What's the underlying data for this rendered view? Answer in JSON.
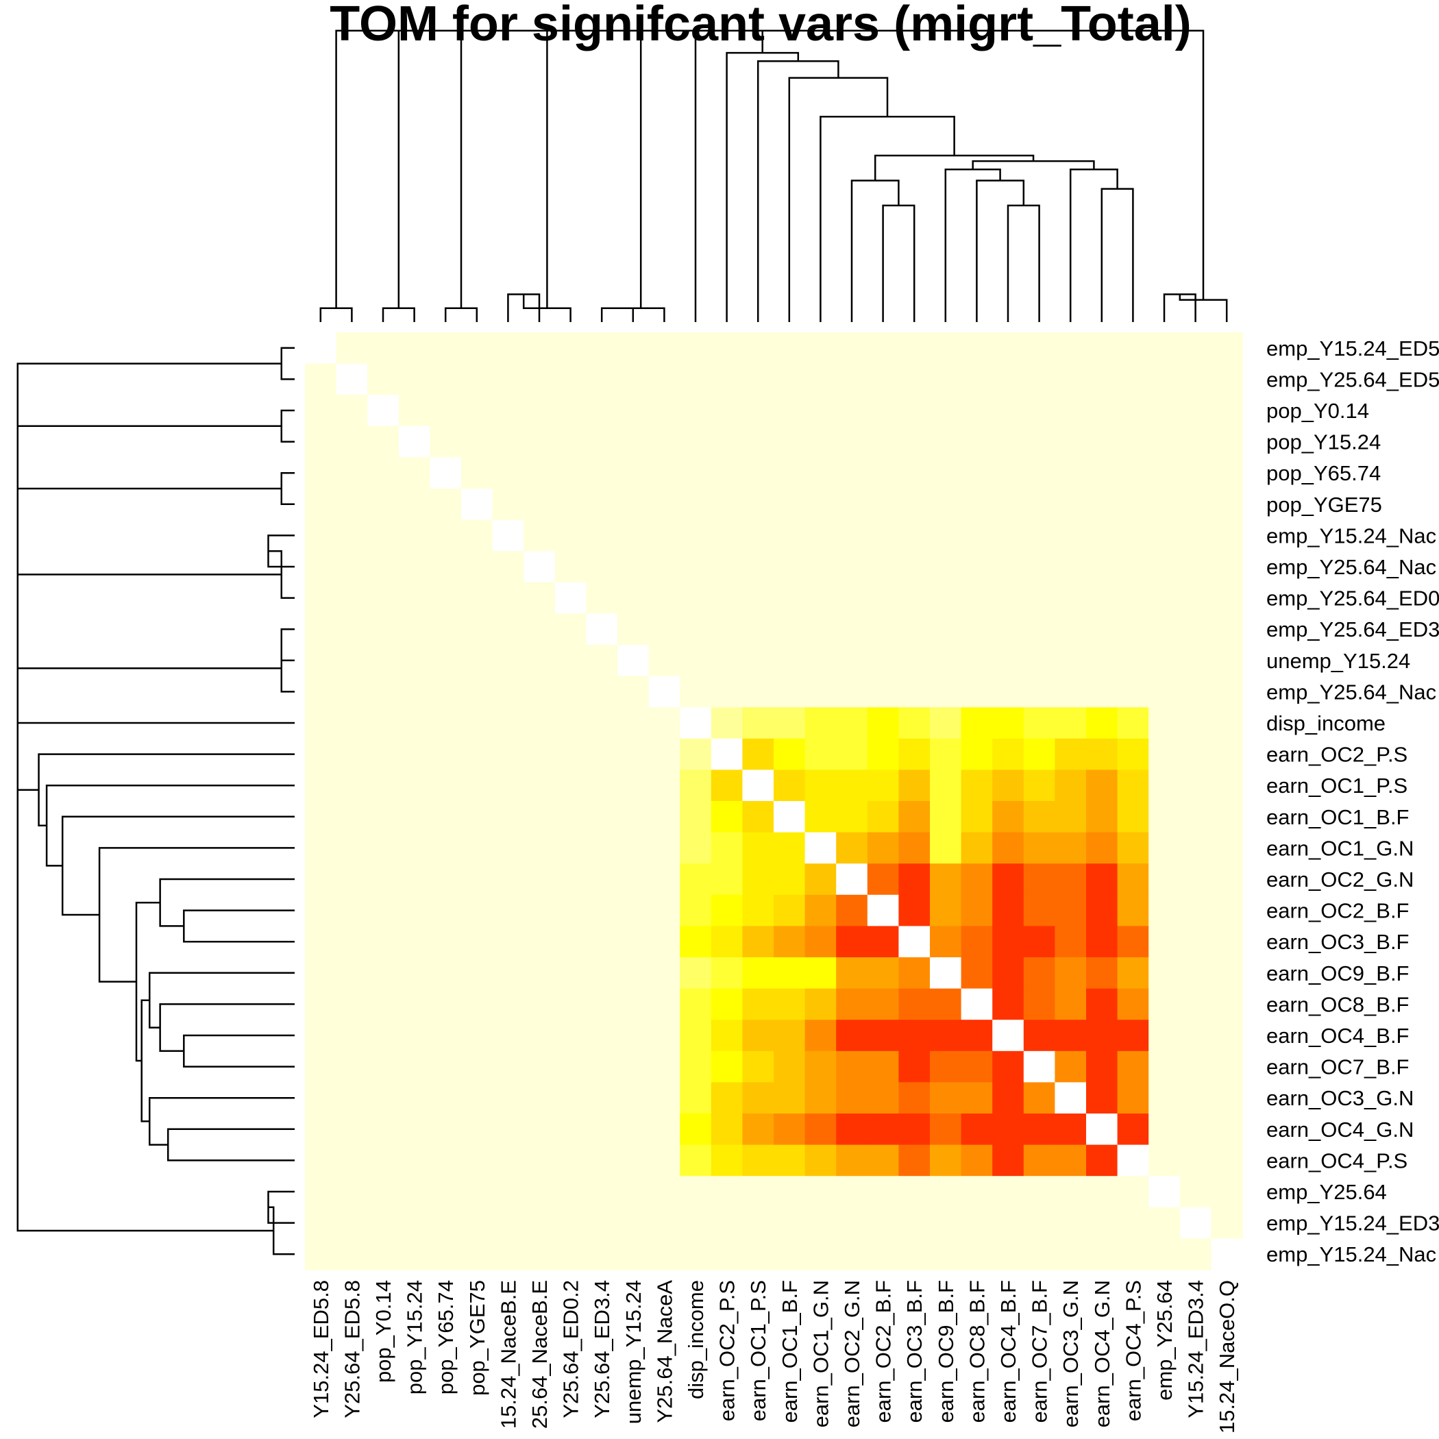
{
  "chart_data": {
    "type": "heatmap",
    "title": "TOM for signifcant vars (migrt_Total)",
    "row_labels": [
      "emp_Y15.24_ED5",
      "emp_Y25.64_ED5",
      "pop_Y0.14",
      "pop_Y15.24",
      "pop_Y65.74",
      "pop_YGE75",
      "emp_Y15.24_Nac",
      "emp_Y25.64_Nac",
      "emp_Y25.64_ED0",
      "emp_Y25.64_ED3",
      "unemp_Y15.24",
      "emp_Y25.64_Nac",
      "disp_income",
      "earn_OC2_P.S",
      "earn_OC1_P.S",
      "earn_OC1_B.F",
      "earn_OC1_G.N",
      "earn_OC2_G.N",
      "earn_OC2_B.F",
      "earn_OC3_B.F",
      "earn_OC9_B.F",
      "earn_OC8_B.F",
      "earn_OC4_B.F",
      "earn_OC7_B.F",
      "earn_OC3_G.N",
      "earn_OC4_G.N",
      "earn_OC4_P.S",
      "emp_Y25.64",
      "emp_Y15.24_ED3",
      "emp_Y15.24_Nac"
    ],
    "col_labels": [
      "Y15.24_ED5.8",
      "Y25.64_ED5.8",
      "pop_Y0.14",
      "pop_Y15.24",
      "pop_Y65.74",
      "pop_YGE75",
      "15.24_NaceB.E",
      "25.64_NaceB.E",
      "Y25.64_ED0.2",
      "Y25.64_ED3.4",
      "unemp_Y15.24",
      "Y25.64_NaceA",
      "disp_income",
      "earn_OC2_P.S",
      "earn_OC1_P.S",
      "earn_OC1_B.F",
      "earn_OC1_G.N",
      "earn_OC2_G.N",
      "earn_OC2_B.F",
      "earn_OC3_B.F",
      "earn_OC9_B.F",
      "earn_OC8_B.F",
      "earn_OC4_B.F",
      "earn_OC7_B.F",
      "earn_OC3_G.N",
      "earn_OC4_G.N",
      "earn_OC4_P.S",
      "emp_Y25.64",
      "Y15.24_ED3.4",
      "15.24_NaceO.Q"
    ],
    "cluster_labels": [
      "disp_income",
      "earn_OC2_P.S",
      "earn_OC1_P.S",
      "earn_OC1_B.F",
      "earn_OC1_G.N",
      "earn_OC2_G.N",
      "earn_OC2_B.F",
      "earn_OC3_B.F",
      "earn_OC9_B.F",
      "earn_OC8_B.F",
      "earn_OC4_B.F",
      "earn_OC7_B.F",
      "earn_OC3_G.N",
      "earn_OC4_G.N",
      "earn_OC4_P.S"
    ],
    "cluster_start": 12,
    "block_values": [
      [
        0,
        1,
        2,
        2,
        3,
        3,
        4,
        3,
        2,
        4,
        4,
        3,
        3,
        4,
        3
      ],
      [
        1,
        0,
        6,
        4,
        3,
        3,
        4,
        5,
        3,
        4,
        5,
        4,
        6,
        6,
        5
      ],
      [
        2,
        6,
        0,
        6,
        5,
        5,
        5,
        7,
        3,
        6,
        7,
        6,
        7,
        8,
        6
      ],
      [
        2,
        4,
        6,
        0,
        5,
        5,
        6,
        8,
        3,
        6,
        8,
        7,
        7,
        8,
        6
      ],
      [
        2,
        3,
        5,
        5,
        0,
        7,
        8,
        9,
        3,
        7,
        9,
        8,
        8,
        9,
        7
      ],
      [
        3,
        3,
        5,
        5,
        7,
        0,
        10,
        11,
        8,
        9,
        11,
        10,
        10,
        11,
        8
      ],
      [
        3,
        4,
        5,
        6,
        8,
        10,
        0,
        11,
        8,
        9,
        11,
        10,
        10,
        11,
        8
      ],
      [
        4,
        5,
        7,
        8,
        9,
        11,
        11,
        0,
        9,
        10,
        11,
        11,
        10,
        11,
        10
      ],
      [
        2,
        3,
        4,
        4,
        4,
        8,
        8,
        9,
        0,
        10,
        11,
        10,
        9,
        10,
        8
      ],
      [
        3,
        4,
        6,
        6,
        7,
        9,
        9,
        10,
        10,
        0,
        11,
        10,
        9,
        11,
        9
      ],
      [
        3,
        5,
        7,
        7,
        9,
        11,
        11,
        11,
        11,
        11,
        0,
        11,
        11,
        11,
        11
      ],
      [
        3,
        4,
        6,
        7,
        8,
        9,
        9,
        11,
        10,
        10,
        11,
        0,
        9,
        11,
        9
      ],
      [
        3,
        6,
        7,
        7,
        8,
        9,
        9,
        10,
        9,
        9,
        11,
        9,
        0,
        11,
        9
      ],
      [
        4,
        6,
        8,
        9,
        10,
        11,
        11,
        11,
        10,
        11,
        11,
        11,
        11,
        0,
        11
      ],
      [
        3,
        5,
        6,
        6,
        7,
        8,
        8,
        10,
        8,
        9,
        11,
        9,
        9,
        11,
        0
      ]
    ],
    "color_scale": [
      "#ffffd9",
      "#ffff99",
      "#ffff66",
      "#ffff33",
      "#ffff00",
      "#ffee00",
      "#ffdd00",
      "#ffc400",
      "#ffa500",
      "#ff8c00",
      "#ff6a00",
      "#ff3300",
      "#ff0000"
    ],
    "diagonal_color": "#ffffff",
    "background_color": "#ffffd9",
    "dendrogram": "both",
    "legend": "none"
  }
}
